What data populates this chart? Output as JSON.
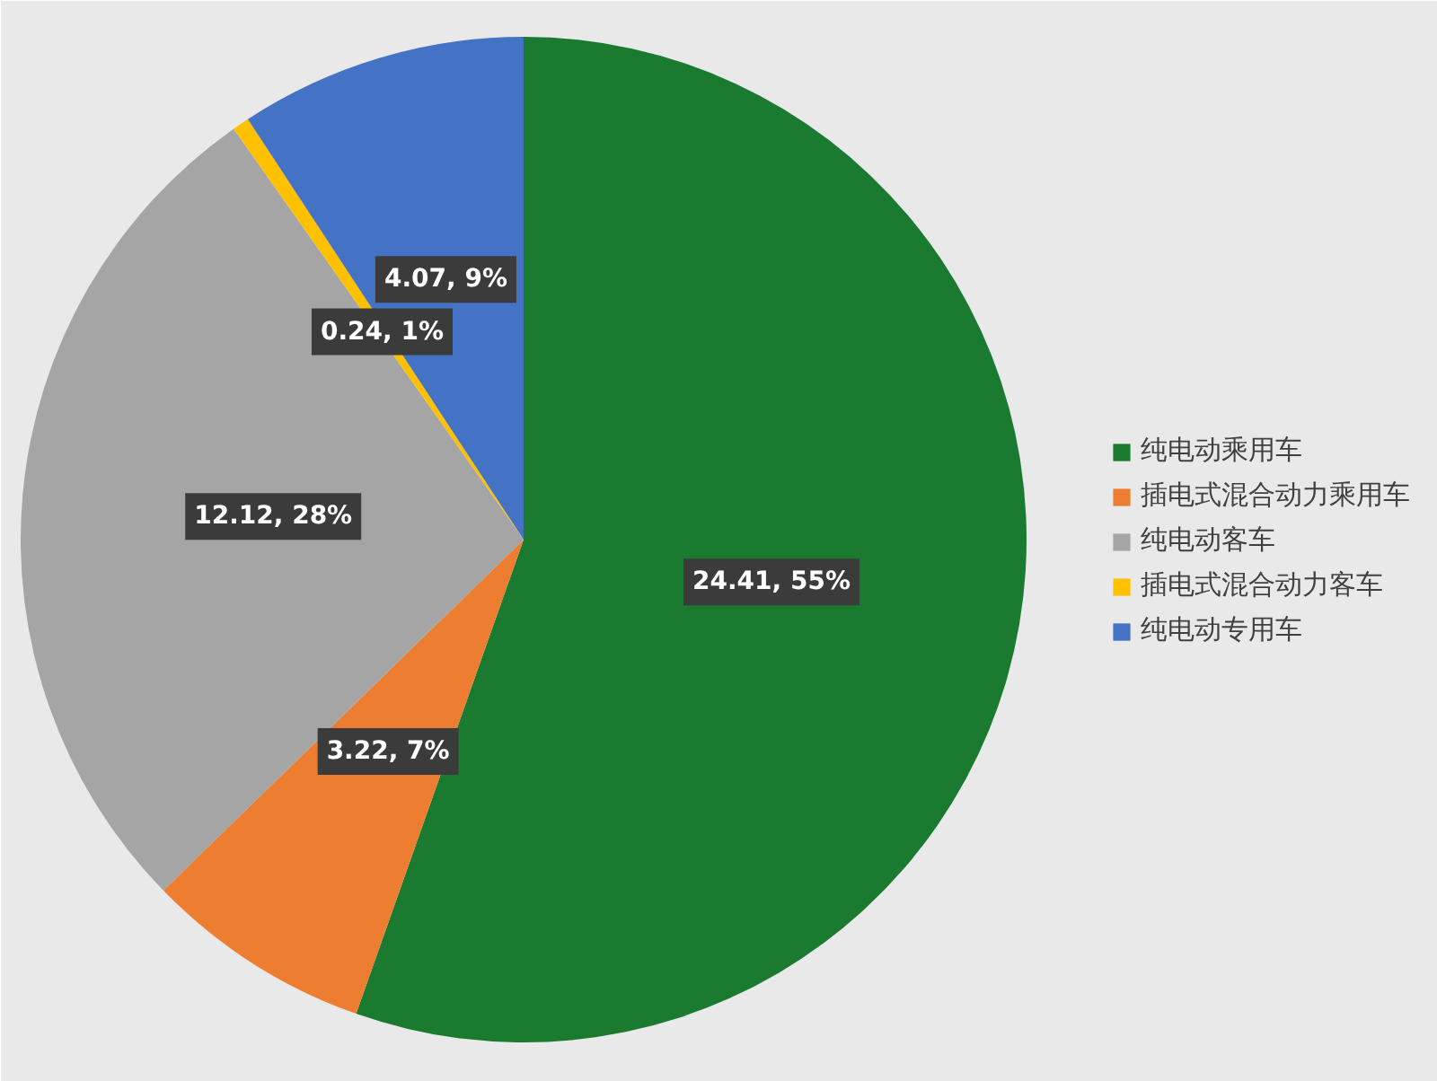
{
  "chart_data": {
    "type": "pie",
    "categories": [
      "纯电动乘用车",
      "插电式混合动力乘用车",
      "纯电动客车",
      "插电式混合动力客车",
      "纯电动专用车"
    ],
    "values": [
      24.41,
      3.22,
      12.12,
      0.24,
      4.07
    ],
    "colors": [
      "#1a7a30",
      "#ed7d31",
      "#a5a5a5",
      "#ffc000",
      "#4472c4"
    ],
    "value_labels": [
      "24.41, 55%",
      "3.22, 7%",
      "12.12, 28%",
      "0.24, 1%",
      "4.07, 9%"
    ],
    "legend": "right"
  }
}
